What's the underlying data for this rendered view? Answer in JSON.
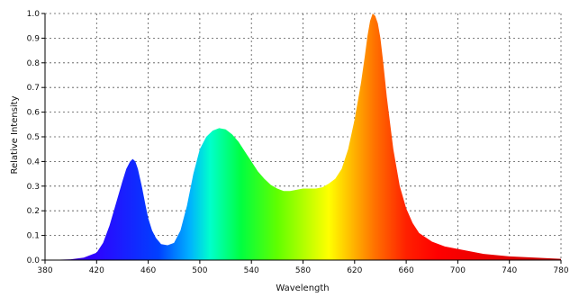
{
  "chart_data": {
    "type": "area",
    "title": "",
    "xlabel": "Wavelength",
    "ylabel": "Relative Intensity",
    "xlim": [
      380,
      780
    ],
    "ylim": [
      0,
      1.0
    ],
    "xticks": [
      380,
      420,
      460,
      500,
      540,
      580,
      620,
      660,
      700,
      740,
      780
    ],
    "xtick_labels": [
      "380",
      "420",
      "460",
      "500",
      "540",
      "580",
      "620",
      "660",
      "700",
      "740",
      "780"
    ],
    "yticks": [
      0,
      0.1,
      0.2,
      0.3,
      0.4,
      0.5,
      0.6,
      0.7,
      0.8,
      0.9,
      1.0
    ],
    "ytick_labels": [
      "0.0",
      "0.1",
      "0.2",
      "0.3",
      "0.4",
      "0.5",
      "0.6",
      "0.7",
      "0.8",
      "0.9",
      "1.0"
    ],
    "grid": true,
    "fill": "visible-spectrum-gradient",
    "series": [
      {
        "x": [
          380,
          400,
          410,
          420,
          425,
          430,
          435,
          440,
          443,
          446,
          448,
          450,
          452,
          455,
          458,
          460,
          463,
          466,
          470,
          475,
          480,
          485,
          490,
          495,
          500,
          505,
          510,
          515,
          520,
          525,
          530,
          535,
          540,
          545,
          550,
          555,
          560,
          565,
          570,
          575,
          580,
          585,
          590,
          595,
          600,
          605,
          610,
          615,
          620,
          625,
          628,
          630,
          632,
          634,
          636,
          638,
          640,
          642,
          645,
          650,
          655,
          660,
          665,
          670,
          680,
          690,
          700,
          710,
          720,
          730,
          740,
          760,
          780
        ],
        "values": [
          0.0,
          0.003,
          0.01,
          0.03,
          0.07,
          0.14,
          0.23,
          0.32,
          0.37,
          0.4,
          0.41,
          0.4,
          0.37,
          0.3,
          0.22,
          0.17,
          0.12,
          0.09,
          0.065,
          0.06,
          0.07,
          0.12,
          0.22,
          0.35,
          0.45,
          0.5,
          0.525,
          0.535,
          0.53,
          0.51,
          0.48,
          0.44,
          0.4,
          0.36,
          0.33,
          0.305,
          0.29,
          0.28,
          0.28,
          0.285,
          0.29,
          0.29,
          0.29,
          0.295,
          0.31,
          0.33,
          0.37,
          0.45,
          0.57,
          0.72,
          0.83,
          0.91,
          0.97,
          1.0,
          0.99,
          0.96,
          0.9,
          0.81,
          0.66,
          0.45,
          0.3,
          0.21,
          0.15,
          0.11,
          0.075,
          0.055,
          0.045,
          0.035,
          0.025,
          0.02,
          0.015,
          0.01,
          0.005
        ]
      }
    ]
  }
}
